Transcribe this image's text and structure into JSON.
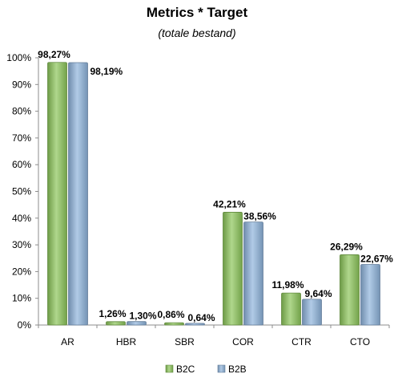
{
  "chart_data": {
    "type": "bar",
    "title": "Metrics * Target",
    "subtitle": "(totale bestand)",
    "categories": [
      "AR",
      "HBR",
      "SBR",
      "COR",
      "CTR",
      "CTO"
    ],
    "series": [
      {
        "name": "B2C",
        "color": "#8cc65a",
        "values": [
          98.27,
          1.26,
          0.86,
          42.21,
          11.98,
          26.29
        ],
        "labels": [
          "98,27%",
          "1,26%",
          "0,86%",
          "42,21%",
          "11,98%",
          "26,29%"
        ]
      },
      {
        "name": "B2B",
        "color": "#8fb4dc",
        "values": [
          98.19,
          1.3,
          0.64,
          38.56,
          9.64,
          22.67
        ],
        "labels": [
          "98,19%",
          "1,30%",
          "0,64%",
          "38,56%",
          "9,64%",
          "22,67%"
        ]
      }
    ],
    "y_ticks": [
      "0%",
      "10%",
      "20%",
      "30%",
      "40%",
      "50%",
      "60%",
      "70%",
      "80%",
      "90%",
      "100%"
    ],
    "ylim": [
      0,
      100
    ],
    "xlabel": "",
    "ylabel": "",
    "grid": false,
    "legend_position": "bottom"
  }
}
